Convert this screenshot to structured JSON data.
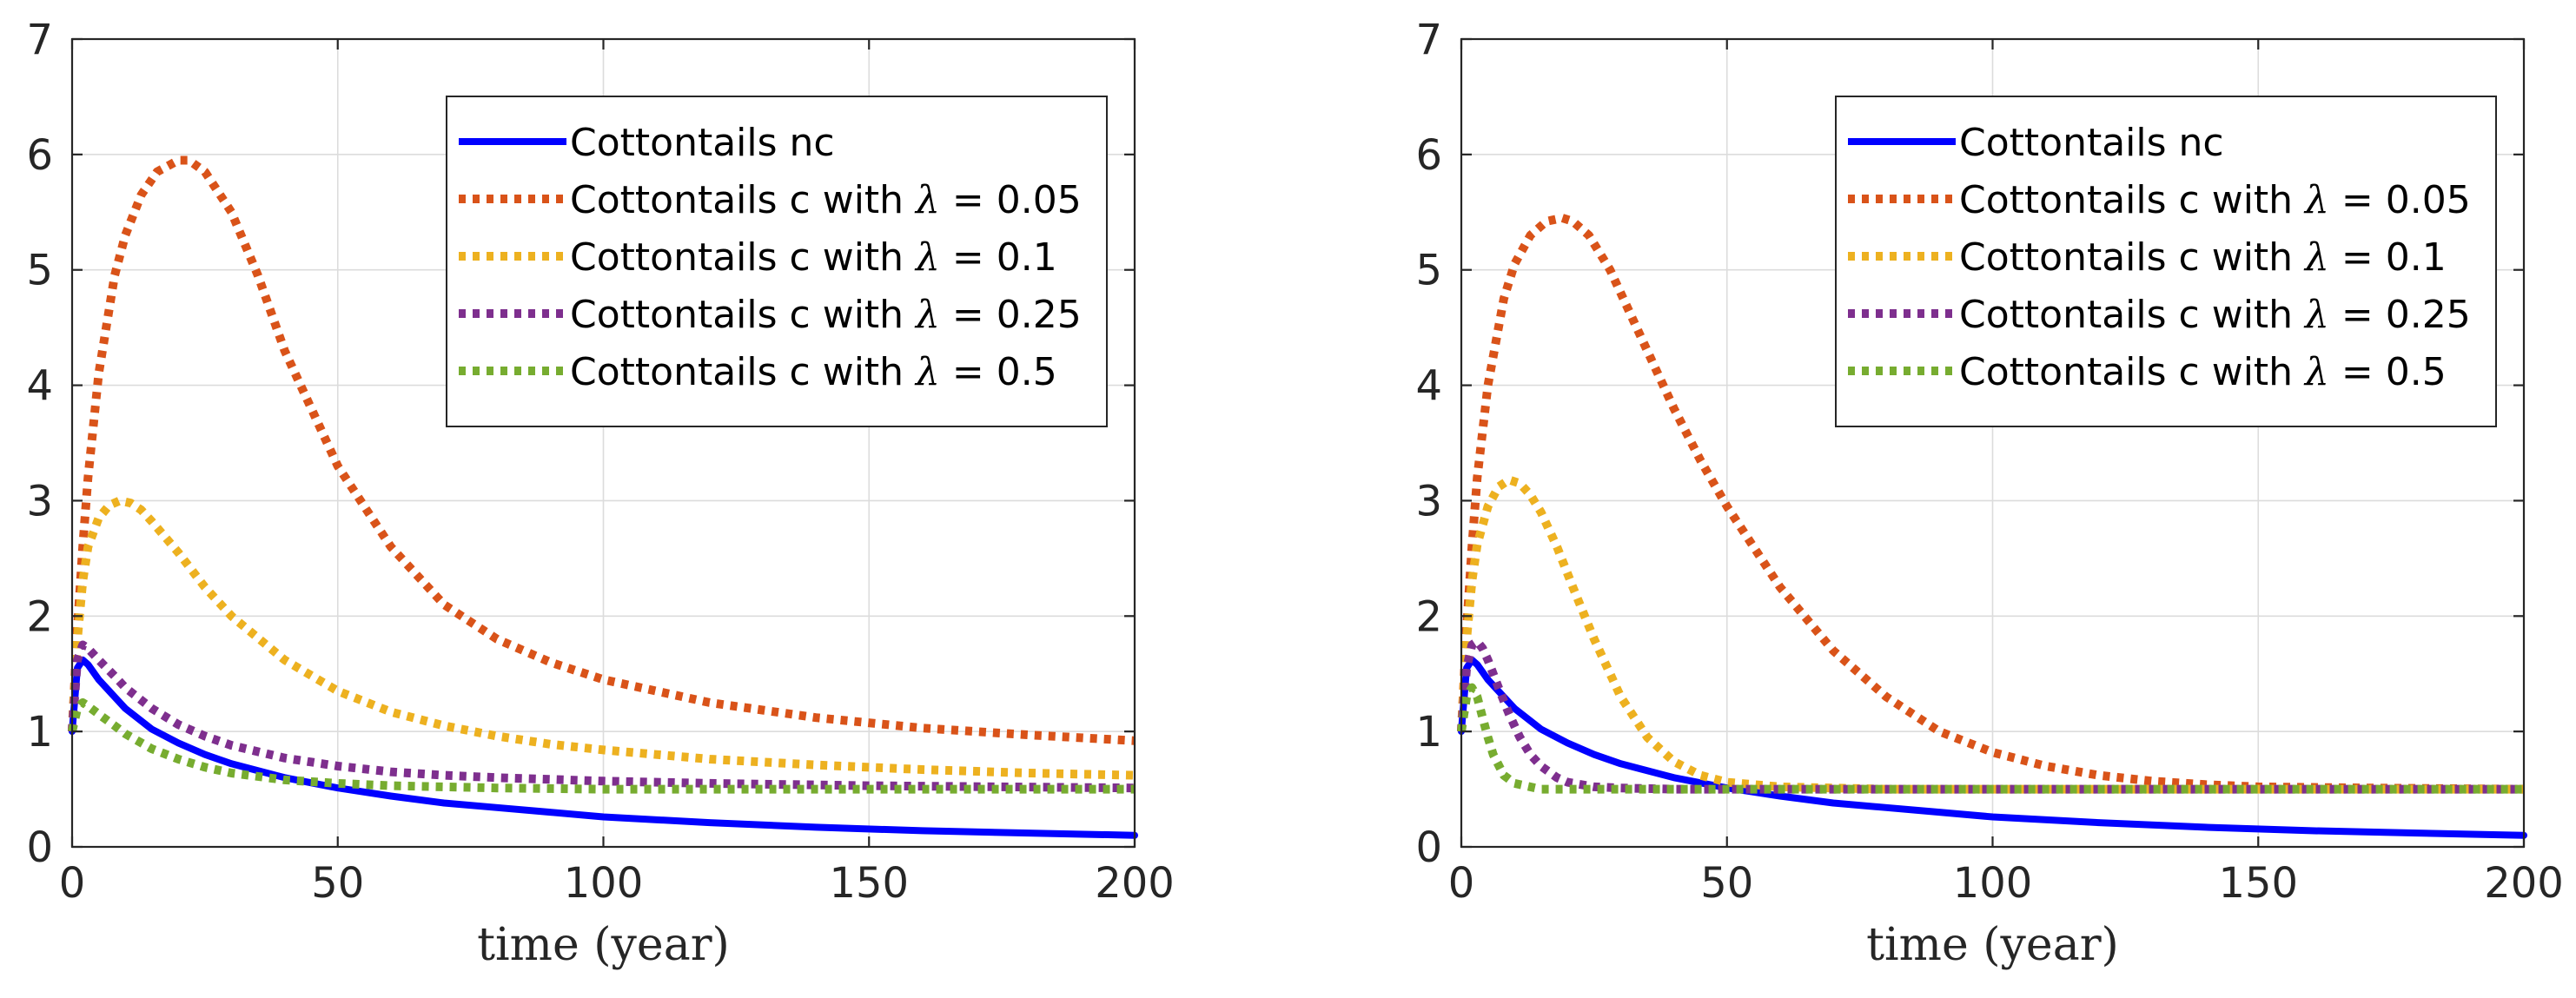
{
  "colors": {
    "nc": "#0000ff",
    "lam005": "#d95319",
    "lam01": "#edb120",
    "lam025": "#7e2f8e",
    "lam05": "#77ac30"
  },
  "chart_data": [
    {
      "type": "line",
      "xlabel": "time (year)",
      "ylabel": "",
      "xlim": [
        0,
        200
      ],
      "ylim": [
        0,
        7
      ],
      "xticks": [
        "0",
        "50",
        "100",
        "150",
        "200"
      ],
      "yticks": [
        "0",
        "1",
        "2",
        "3",
        "4",
        "5",
        "6",
        "7"
      ],
      "grid": true,
      "legend_position": "top-right",
      "series": [
        {
          "name": "Cottontails nc",
          "label_main": "Cottontails nc",
          "lambda_value": "",
          "color_key": "nc",
          "style": "solid",
          "x": [
            0,
            1,
            2,
            3,
            5,
            8,
            10,
            15,
            20,
            25,
            30,
            40,
            50,
            60,
            70,
            80,
            90,
            100,
            120,
            140,
            160,
            180,
            200
          ],
          "y": [
            1.0,
            1.55,
            1.62,
            1.58,
            1.45,
            1.3,
            1.2,
            1.02,
            0.9,
            0.8,
            0.72,
            0.6,
            0.51,
            0.44,
            0.38,
            0.34,
            0.3,
            0.26,
            0.21,
            0.17,
            0.14,
            0.12,
            0.1
          ]
        },
        {
          "name": "Cottontails c with λ = 0.05",
          "label_main": "Cottontails c with ",
          "lambda_value": " = 0.05",
          "color_key": "lam005",
          "style": "dotted",
          "x": [
            0,
            1,
            2,
            3,
            5,
            8,
            10,
            13,
            16,
            20,
            22,
            25,
            30,
            35,
            40,
            45,
            50,
            60,
            70,
            80,
            90,
            100,
            120,
            140,
            160,
            180,
            200
          ],
          "y": [
            1.0,
            1.9,
            2.6,
            3.2,
            4.1,
            4.95,
            5.3,
            5.65,
            5.85,
            5.95,
            5.95,
            5.85,
            5.5,
            4.95,
            4.3,
            3.8,
            3.3,
            2.6,
            2.1,
            1.8,
            1.6,
            1.45,
            1.25,
            1.12,
            1.03,
            0.97,
            0.92
          ]
        },
        {
          "name": "Cottontails c with λ = 0.1",
          "label_main": "Cottontails c with ",
          "lambda_value": " = 0.1",
          "color_key": "lam01",
          "style": "dotted",
          "x": [
            0,
            1,
            2,
            3,
            5,
            7,
            9,
            11,
            13,
            15,
            20,
            25,
            30,
            40,
            50,
            60,
            70,
            80,
            90,
            100,
            120,
            140,
            160,
            180,
            200
          ],
          "y": [
            1.0,
            1.8,
            2.3,
            2.6,
            2.85,
            2.96,
            3.0,
            2.98,
            2.92,
            2.82,
            2.55,
            2.25,
            2.0,
            1.62,
            1.35,
            1.17,
            1.05,
            0.96,
            0.89,
            0.84,
            0.76,
            0.71,
            0.67,
            0.64,
            0.62
          ]
        },
        {
          "name": "Cottontails c with λ = 0.25",
          "label_main": "Cottontails c with ",
          "lambda_value": " = 0.25",
          "color_key": "lam025",
          "style": "dotted",
          "x": [
            0,
            1,
            2,
            3,
            5,
            8,
            10,
            15,
            20,
            25,
            30,
            40,
            50,
            60,
            70,
            80,
            100,
            120,
            150,
            200
          ],
          "y": [
            1.0,
            1.62,
            1.75,
            1.72,
            1.62,
            1.48,
            1.38,
            1.2,
            1.06,
            0.96,
            0.88,
            0.77,
            0.7,
            0.65,
            0.62,
            0.6,
            0.57,
            0.55,
            0.53,
            0.51
          ]
        },
        {
          "name": "Cottontails c with λ = 0.5",
          "label_main": "Cottontails c with ",
          "lambda_value": " = 0.5",
          "color_key": "lam05",
          "style": "dotted",
          "x": [
            0,
            1,
            2,
            3,
            5,
            8,
            10,
            15,
            20,
            25,
            30,
            40,
            50,
            60,
            80,
            100,
            150,
            200
          ],
          "y": [
            1.0,
            1.2,
            1.25,
            1.22,
            1.15,
            1.05,
            0.98,
            0.85,
            0.76,
            0.69,
            0.64,
            0.58,
            0.55,
            0.53,
            0.51,
            0.5,
            0.5,
            0.5
          ]
        }
      ]
    },
    {
      "type": "line",
      "xlabel": "time (year)",
      "ylabel": "",
      "xlim": [
        0,
        200
      ],
      "ylim": [
        0,
        7
      ],
      "xticks": [
        "0",
        "50",
        "100",
        "150",
        "200"
      ],
      "yticks": [
        "0",
        "1",
        "2",
        "3",
        "4",
        "5",
        "6",
        "7"
      ],
      "grid": true,
      "legend_position": "top-right",
      "series": [
        {
          "name": "Cottontails nc",
          "label_main": "Cottontails nc",
          "lambda_value": "",
          "color_key": "nc",
          "style": "solid",
          "x": [
            0,
            1,
            2,
            3,
            5,
            8,
            10,
            15,
            20,
            25,
            30,
            40,
            50,
            60,
            70,
            80,
            90,
            100,
            120,
            140,
            160,
            180,
            200
          ],
          "y": [
            1.0,
            1.55,
            1.62,
            1.58,
            1.45,
            1.3,
            1.2,
            1.02,
            0.9,
            0.8,
            0.72,
            0.6,
            0.51,
            0.44,
            0.38,
            0.34,
            0.3,
            0.26,
            0.21,
            0.17,
            0.14,
            0.12,
            0.1
          ]
        },
        {
          "name": "Cottontails c with λ = 0.05",
          "label_main": "Cottontails c with ",
          "lambda_value": " = 0.05",
          "color_key": "lam005",
          "style": "dotted",
          "x": [
            0,
            1,
            2,
            3,
            5,
            8,
            10,
            13,
            16,
            19,
            21,
            24,
            28,
            32,
            36,
            40,
            45,
            50,
            60,
            70,
            80,
            90,
            100,
            110,
            120,
            130,
            140,
            150,
            170,
            200
          ],
          "y": [
            1.0,
            1.9,
            2.6,
            3.2,
            4.0,
            4.75,
            5.05,
            5.3,
            5.42,
            5.45,
            5.42,
            5.3,
            5.0,
            4.6,
            4.2,
            3.8,
            3.35,
            2.95,
            2.25,
            1.7,
            1.3,
            1.0,
            0.82,
            0.7,
            0.62,
            0.57,
            0.54,
            0.52,
            0.51,
            0.5
          ]
        },
        {
          "name": "Cottontails c with λ = 0.1",
          "label_main": "Cottontails c with ",
          "lambda_value": " = 0.1",
          "color_key": "lam01",
          "style": "dotted",
          "x": [
            0,
            1,
            2,
            3,
            5,
            7,
            9,
            11,
            13,
            15,
            18,
            21,
            25,
            30,
            35,
            40,
            45,
            50,
            60,
            80,
            100,
            150,
            200
          ],
          "y": [
            1.0,
            1.8,
            2.3,
            2.62,
            2.95,
            3.12,
            3.18,
            3.15,
            3.05,
            2.9,
            2.6,
            2.25,
            1.8,
            1.3,
            0.95,
            0.74,
            0.62,
            0.56,
            0.52,
            0.5,
            0.5,
            0.5,
            0.5
          ]
        },
        {
          "name": "Cottontails c with λ = 0.25",
          "label_main": "Cottontails c with ",
          "lambda_value": " = 0.25",
          "color_key": "lam025",
          "style": "dotted",
          "x": [
            0,
            1,
            2,
            3,
            4,
            5,
            7,
            9,
            11,
            13,
            15,
            18,
            20,
            25,
            30,
            40,
            60,
            100,
            150,
            200
          ],
          "y": [
            1.0,
            1.55,
            1.75,
            1.78,
            1.72,
            1.62,
            1.38,
            1.15,
            0.95,
            0.8,
            0.7,
            0.6,
            0.56,
            0.52,
            0.51,
            0.5,
            0.5,
            0.5,
            0.5,
            0.5
          ]
        },
        {
          "name": "Cottontails c with λ = 0.5",
          "label_main": "Cottontails c with ",
          "lambda_value": " = 0.5",
          "color_key": "lam05",
          "style": "dotted",
          "x": [
            0,
            1,
            2,
            3,
            4,
            5,
            6,
            8,
            10,
            15,
            20,
            50,
            100,
            150,
            200
          ],
          "y": [
            1.0,
            1.3,
            1.38,
            1.3,
            1.12,
            0.95,
            0.8,
            0.62,
            0.55,
            0.5,
            0.5,
            0.5,
            0.5,
            0.5,
            0.5
          ]
        }
      ]
    }
  ]
}
